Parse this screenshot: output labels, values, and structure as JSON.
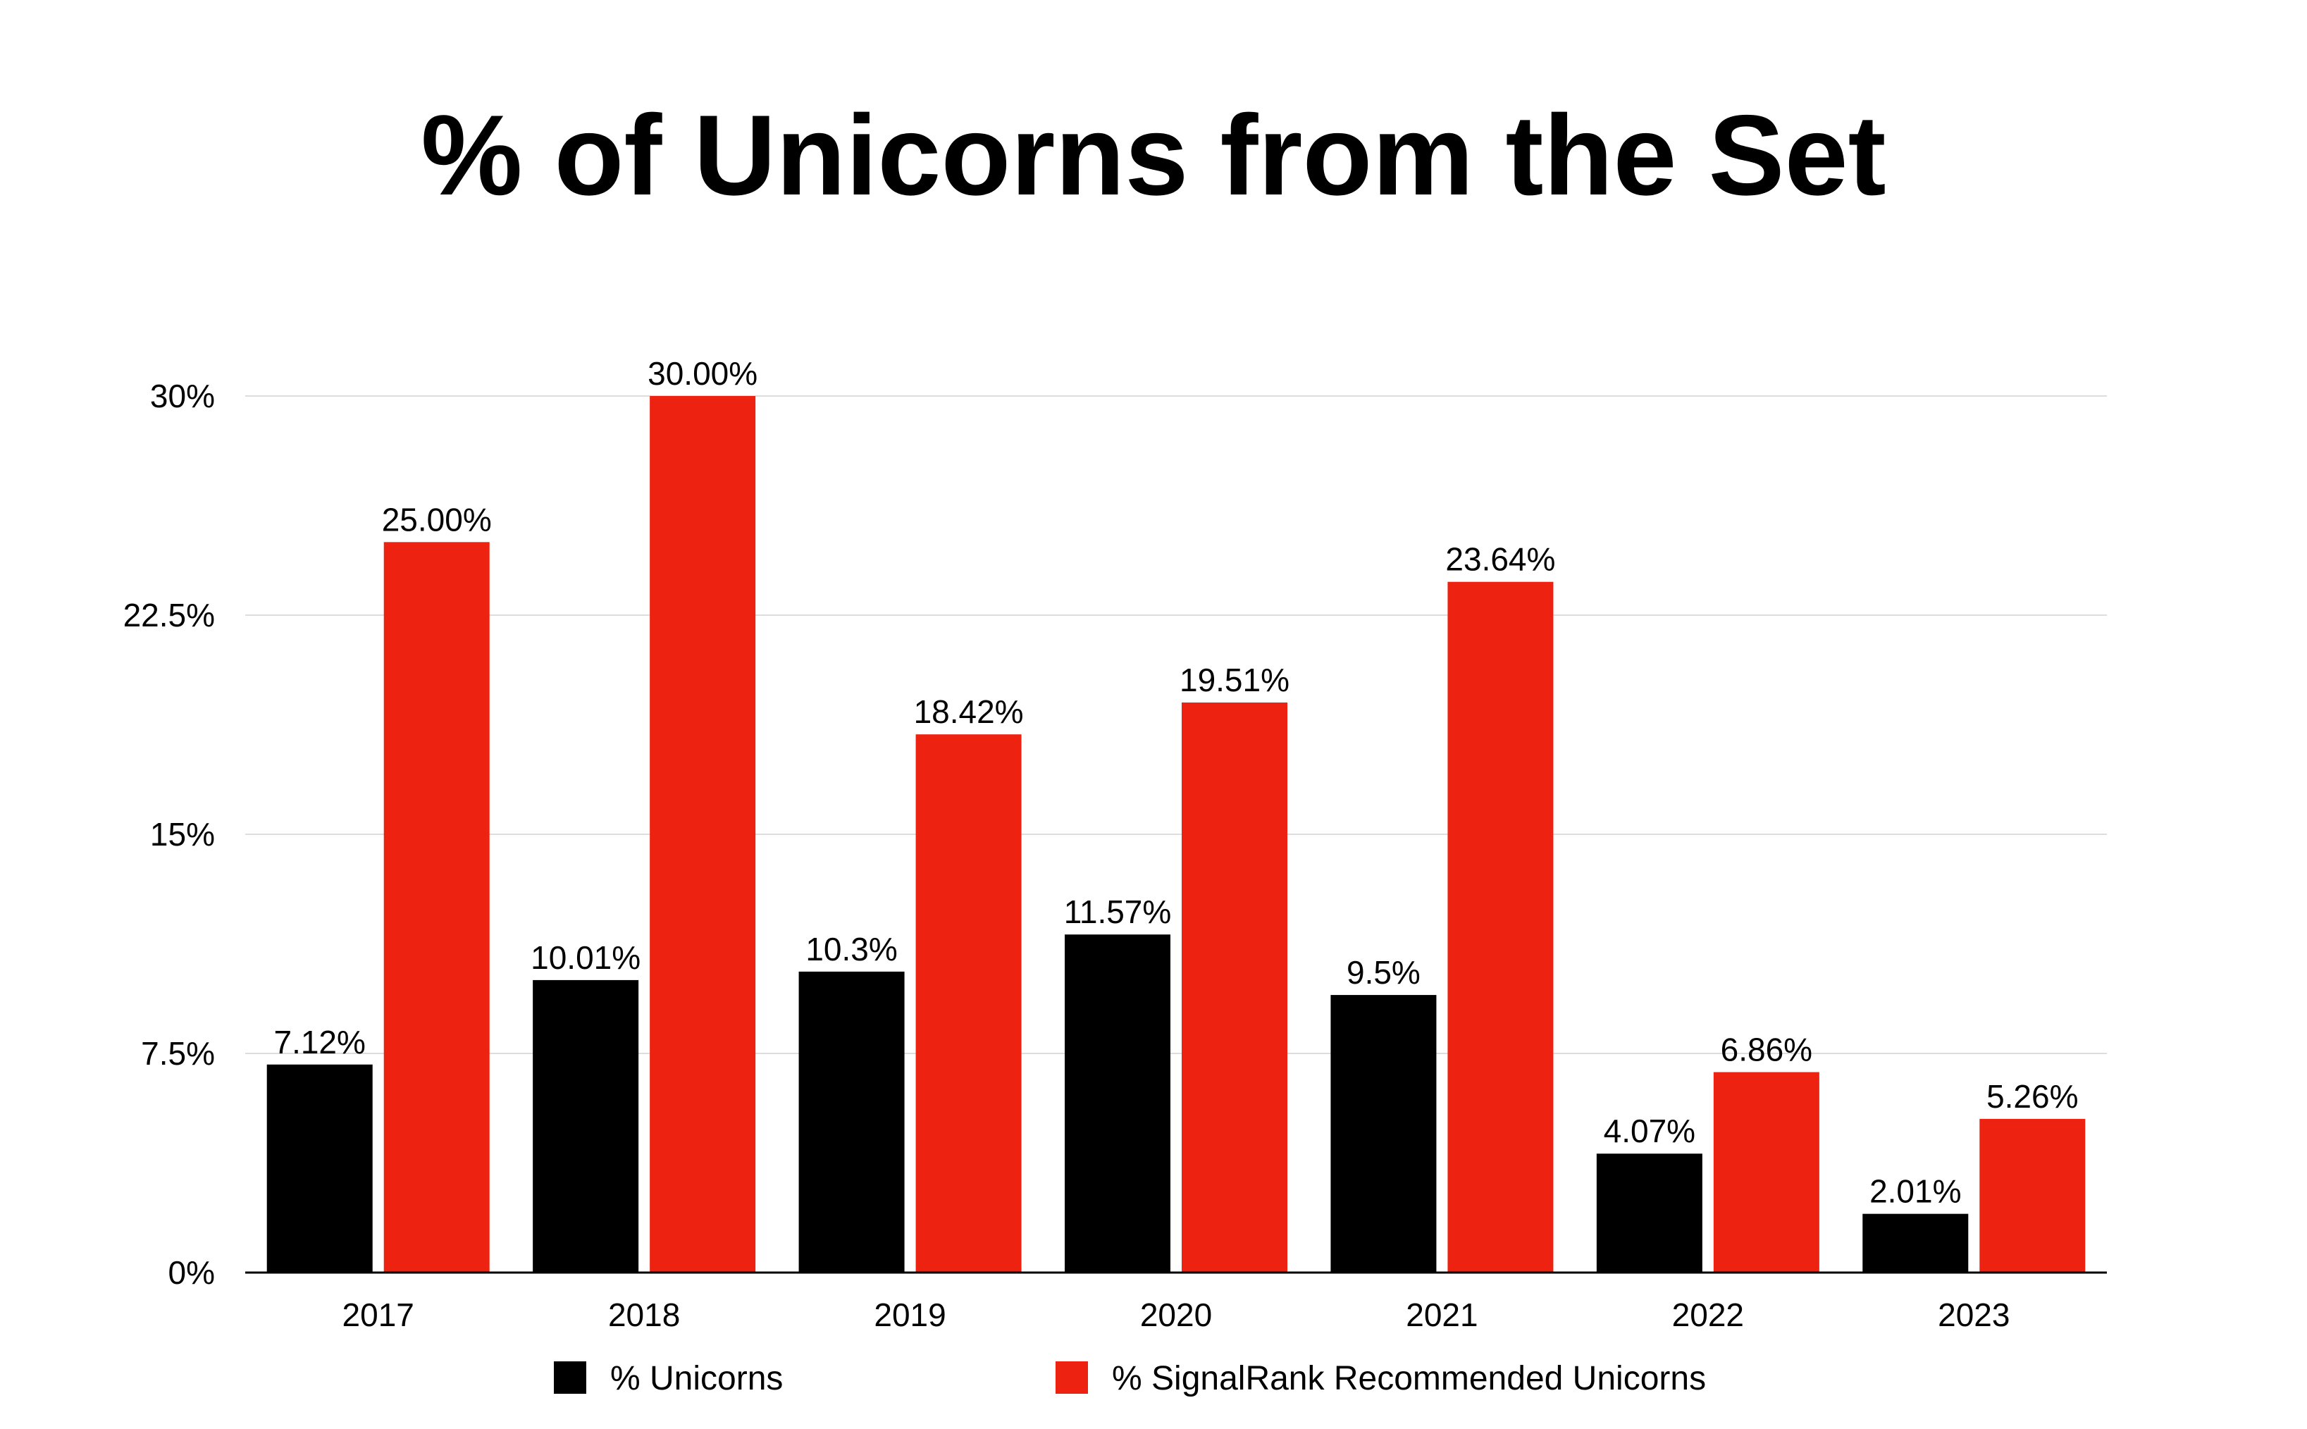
{
  "chart_data": {
    "type": "bar",
    "title": "% of Unicorns from the Set",
    "xlabel": "",
    "ylabel": "",
    "categories": [
      "2017",
      "2018",
      "2019",
      "2020",
      "2021",
      "2022",
      "2023"
    ],
    "series": [
      {
        "name": "% Unicorns",
        "color": "#000000",
        "values": [
          7.12,
          10.01,
          10.3,
          11.57,
          9.5,
          4.07,
          2.01
        ],
        "labels": [
          "7.12%",
          "10.01%",
          "10.3%",
          "11.57%",
          "9.5%",
          "4.07%",
          "2.01%"
        ]
      },
      {
        "name": "% SignalRank Recommended Unicorns",
        "color": "#ee2211",
        "values": [
          25.0,
          30.0,
          18.42,
          19.51,
          23.64,
          6.86,
          5.26
        ],
        "labels": [
          "25.00%",
          "30.00%",
          "18.42%",
          "19.51%",
          "23.64%",
          "6.86%",
          "5.26%"
        ]
      }
    ],
    "ylim": [
      0,
      30
    ],
    "yticks": [
      0,
      7.5,
      15,
      22.5,
      30
    ],
    "ytick_labels": [
      "0%",
      "7.5%",
      "15%",
      "22.5%",
      "30%"
    ],
    "grid": true,
    "legend_position": "bottom"
  }
}
